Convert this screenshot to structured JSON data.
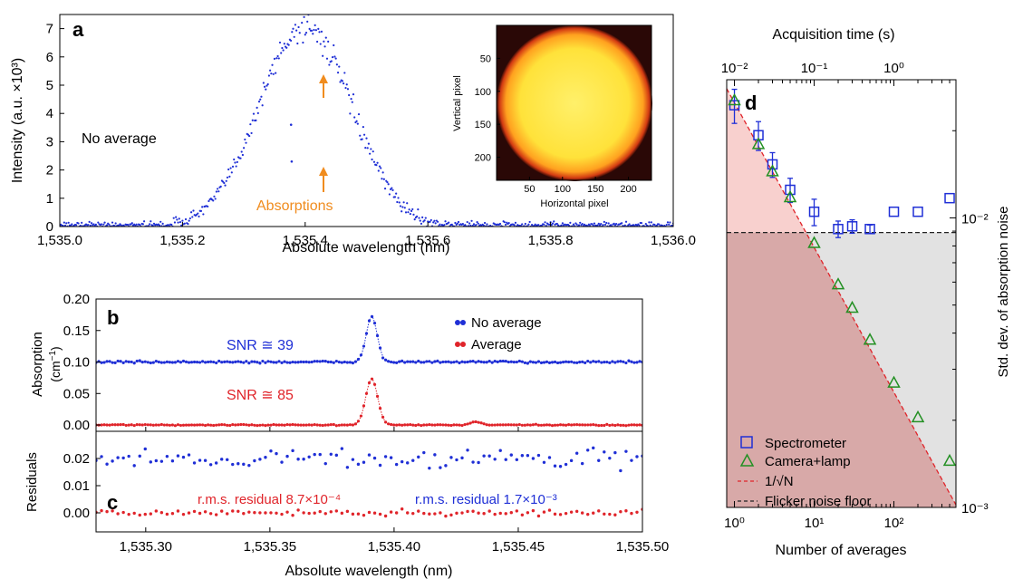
{
  "chart_data": [
    {
      "panel": "a",
      "type": "scatter",
      "xlabel": "Absolute wavelength (nm)",
      "ylabel": "Intensity (a.u. ×10³)",
      "xlim": [
        1535.0,
        1536.0
      ],
      "ylim": [
        0,
        7.5
      ],
      "xticks": [
        "1,535.0",
        "1,535.2",
        "1,535.4",
        "1,535.6",
        "1,535.8",
        "1,536.0"
      ],
      "yticks": [
        "0",
        "1",
        "2",
        "3",
        "4",
        "5",
        "6",
        "7"
      ],
      "series": [
        {
          "name": "",
          "color": "#1f2fd6",
          "center": 1535.4,
          "peak": 7.1,
          "sigma": 0.075,
          "noise": 0.12,
          "points": [
            [
              1535.377,
              3.6
            ],
            [
              1535.378,
              2.3
            ]
          ]
        }
      ],
      "annotations": {
        "label": "No average",
        "absorptions": "Absorptions",
        "arrow_color": "#f08c1e"
      },
      "inset": {
        "type": "heatmap",
        "xlabel": "Horizontal pixel",
        "ylabel": "Vertical pixel",
        "xticks": [
          "50",
          "100",
          "150",
          "200"
        ],
        "yticks": [
          "50",
          "100",
          "150",
          "200"
        ]
      }
    },
    {
      "panel": "b",
      "type": "line",
      "xlabel": "",
      "ylabel": "Absorption (cm⁻¹)",
      "xlim": [
        1535.28,
        1535.5
      ],
      "ylim": [
        -0.01,
        0.2
      ],
      "yticks": [
        "0.00",
        "0.05",
        "0.10",
        "0.15",
        "0.20"
      ],
      "series": [
        {
          "name": "No average",
          "color": "#1f2fd6",
          "baseline": 0.1,
          "peak_x": 1535.391,
          "peak_height": 0.072,
          "width": 0.0022,
          "noise": 0.002
        },
        {
          "name": "Average",
          "color": "#e0242a",
          "baseline": 0.0,
          "peak_x": 1535.391,
          "peak_height": 0.073,
          "width": 0.0024,
          "noise": 0.001,
          "small_peak_x": 1535.433,
          "small_peak_height": 0.005
        }
      ],
      "annotations": {
        "snr_blue": "SNR ≅ 39",
        "snr_red": "SNR ≅ 85"
      }
    },
    {
      "panel": "c",
      "type": "scatter",
      "xlabel": "Absolute wavelength (nm)",
      "ylabel": "Residuals",
      "xlim": [
        1535.28,
        1535.5
      ],
      "ylim": [
        -0.007,
        0.03
      ],
      "xticks": [
        "1,535.30",
        "1,535.35",
        "1,535.40",
        "1,535.45",
        "1,535.50"
      ],
      "yticks": [
        "0.00",
        "0.01",
        "0.02"
      ],
      "series": [
        {
          "name": "No average",
          "color": "#1f2fd6",
          "baseline": 0.02,
          "noise": 0.0025
        },
        {
          "name": "Average",
          "color": "#e0242a",
          "baseline": 0.0,
          "noise": 0.0008
        }
      ],
      "annotations": {
        "rms_red": "r.m.s. residual 8.7×10⁻⁴",
        "rms_blue": "r.m.s. residual 1.7×10⁻³"
      }
    },
    {
      "panel": "d",
      "type": "scatter",
      "xlabel": "Number of averages",
      "x2label": "Acquisition time (s)",
      "ylabel": "Std. dev. of absorption noise",
      "xscale": "log",
      "yscale": "log",
      "xlim": [
        0.8,
        600
      ],
      "ylim": [
        0.001,
        0.03
      ],
      "xticks": [
        "10⁰",
        "10¹",
        "10²"
      ],
      "x2ticks": [
        "10⁻²",
        "10⁻¹",
        "10⁰"
      ],
      "yticks": [
        "10⁻²",
        "10⁻³"
      ],
      "series": [
        {
          "name": "Spectrometer",
          "color": "#1f2fd6",
          "marker": "square",
          "x": [
            1,
            2,
            3,
            5,
            10,
            20,
            30,
            50,
            100,
            200,
            500
          ],
          "y": [
            0.0245,
            0.0193,
            0.0153,
            0.0125,
            0.0105,
            0.00915,
            0.00935,
            0.00915,
            0.0105,
            0.0105,
            0.0117
          ],
          "err": [
            0.0033,
            0.0022,
            0.0015,
            0.0012,
            0.0011,
            0.0006,
            0.0005,
            0.0003,
            0,
            0,
            0
          ]
        },
        {
          "name": "Camera+lamp",
          "color": "#239023",
          "marker": "triangle",
          "x": [
            1,
            2,
            3,
            5,
            10,
            20,
            30,
            50,
            100,
            200,
            500
          ],
          "y": [
            0.0255,
            0.018,
            0.0145,
            0.0118,
            0.0082,
            0.0059,
            0.0049,
            0.0038,
            0.0027,
            0.00205,
            0.00145
          ]
        },
        {
          "name": "1/√N",
          "color": "#e0242a",
          "style": "dashed",
          "x0": 1,
          "y0": 0.025
        },
        {
          "name": "Flicker noise floor",
          "color": "#222222",
          "style": "dashed",
          "y": 0.0089
        }
      ]
    }
  ],
  "labels": {
    "a": "a",
    "b": "b",
    "c": "c",
    "d": "d"
  }
}
